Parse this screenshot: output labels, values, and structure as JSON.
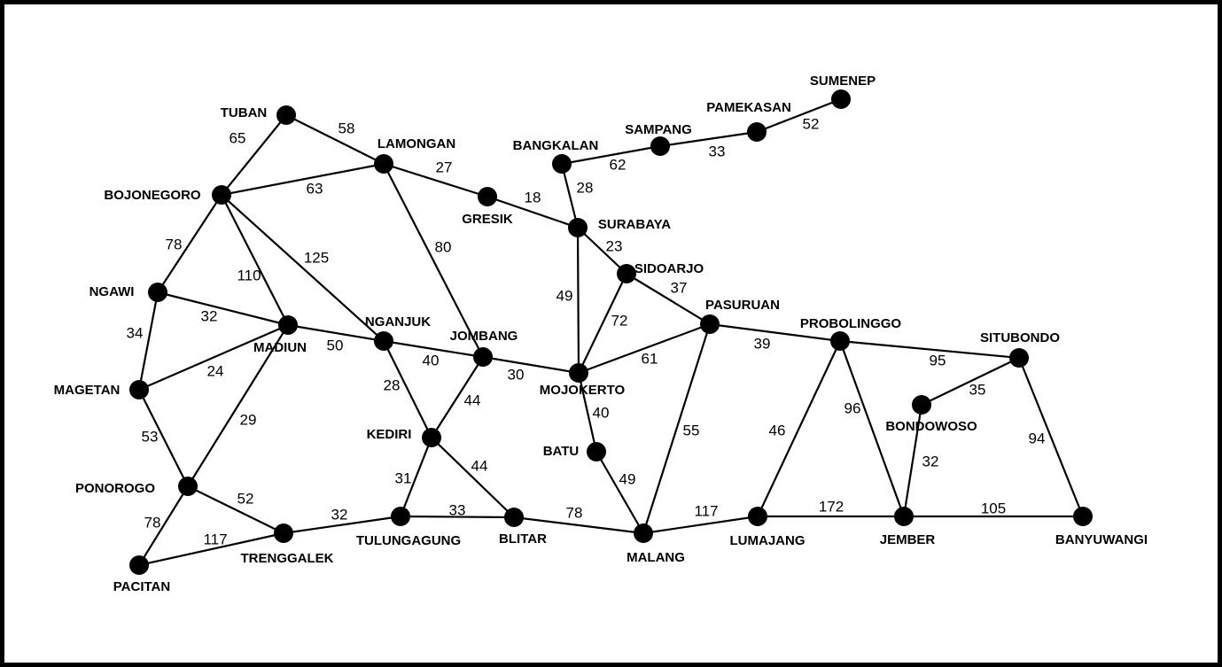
{
  "nodes": [
    {
      "label": "TUBAN"
    },
    {
      "label": "LAMONGAN"
    },
    {
      "label": "BOJONEGORO"
    },
    {
      "label": "GRESIK"
    },
    {
      "label": "BANGKALAN"
    },
    {
      "label": "SAMPANG"
    },
    {
      "label": "PAMEKASAN"
    },
    {
      "label": "SUMENEP"
    },
    {
      "label": "SURABAYA"
    },
    {
      "label": "SIDOARJO"
    },
    {
      "label": "NGAWI"
    },
    {
      "label": "MADIUN"
    },
    {
      "label": "NGANJUK"
    },
    {
      "label": "JOMBANG"
    },
    {
      "label": "PASURUAN"
    },
    {
      "label": "PROBOLINGGO"
    },
    {
      "label": "SITUBONDO"
    },
    {
      "label": "MOJOKERTO"
    },
    {
      "label": "MAGETAN"
    },
    {
      "label": "KEDIRI"
    },
    {
      "label": "BONDOWOSO"
    },
    {
      "label": "BATU"
    },
    {
      "label": "PONOROGO"
    },
    {
      "label": "TRENGGALEK"
    },
    {
      "label": "TULUNGAGUNG"
    },
    {
      "label": "BLITAR"
    },
    {
      "label": "MALANG"
    },
    {
      "label": "LUMAJANG"
    },
    {
      "label": "JEMBER"
    },
    {
      "label": "BANYUWANGI"
    },
    {
      "label": "PACITAN"
    }
  ],
  "edges": [
    {
      "weight": 58
    },
    {
      "weight": 65
    },
    {
      "weight": 63
    },
    {
      "weight": 27
    },
    {
      "weight": 80
    },
    {
      "weight": 18
    },
    {
      "weight": 62
    },
    {
      "weight": 33
    },
    {
      "weight": 52
    },
    {
      "weight": 28
    },
    {
      "weight": 23
    },
    {
      "weight": 49
    },
    {
      "weight": 72
    },
    {
      "weight": 37
    },
    {
      "weight": 78
    },
    {
      "weight": 110
    },
    {
      "weight": 125
    },
    {
      "weight": 32
    },
    {
      "weight": 34
    },
    {
      "weight": 24
    },
    {
      "weight": 50
    },
    {
      "weight": 29
    },
    {
      "weight": 53
    },
    {
      "weight": 40
    },
    {
      "weight": 28
    },
    {
      "weight": 30
    },
    {
      "weight": 44
    },
    {
      "weight": 61
    },
    {
      "weight": 40
    },
    {
      "weight": 39
    },
    {
      "weight": 55
    },
    {
      "weight": 95
    },
    {
      "weight": 46
    },
    {
      "weight": 96
    },
    {
      "weight": 35
    },
    {
      "weight": 94
    },
    {
      "weight": 32
    },
    {
      "weight": 31
    },
    {
      "weight": 44
    },
    {
      "weight": 49
    },
    {
      "weight": 52
    },
    {
      "weight": 78
    },
    {
      "weight": 117
    },
    {
      "weight": 32
    },
    {
      "weight": 33
    },
    {
      "weight": 78
    },
    {
      "weight": 117
    },
    {
      "weight": 172
    },
    {
      "weight": 105
    }
  ]
}
